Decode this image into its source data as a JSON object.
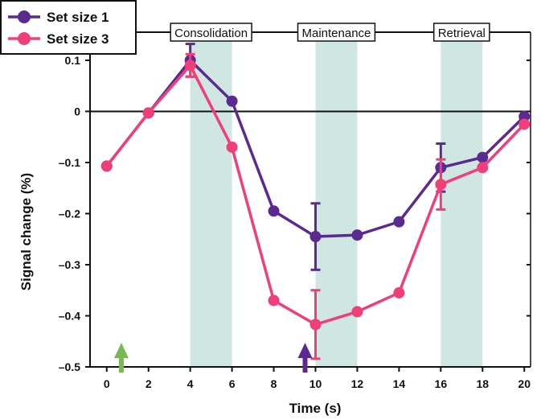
{
  "chart_data": {
    "type": "line",
    "title": "",
    "xlabel": "Time (s)",
    "ylabel": "Signal change (%)",
    "xlim": [
      -0.8,
      20.3
    ],
    "ylim": [
      -0.5,
      0.155
    ],
    "x_ticks": [
      0,
      2,
      4,
      6,
      8,
      10,
      12,
      14,
      16,
      18,
      20
    ],
    "y_ticks": [
      0.1,
      0,
      -0.1,
      -0.2,
      -0.3,
      -0.4,
      -0.5
    ],
    "y_tick_labels": [
      "0.1",
      "0",
      "–0.1",
      "–0.2",
      "–0.3",
      "–0.4",
      "–0.5"
    ],
    "grid": false,
    "legend": "top-left",
    "x": [
      0,
      2,
      4,
      6,
      8,
      10,
      12,
      14,
      16,
      18,
      20
    ],
    "series": [
      {
        "name": "Set size 1",
        "color": "#5b2a91",
        "values": [
          -0.107,
          -0.003,
          0.1,
          0.02,
          -0.195,
          -0.245,
          -0.242,
          -0.216,
          -0.11,
          -0.09,
          -0.01
        ],
        "error_bars": [
          {
            "x": 4,
            "high": 0.132,
            "low": 0.068
          },
          {
            "x": 10,
            "high": -0.18,
            "low": -0.31
          },
          {
            "x": 16,
            "high": -0.063,
            "low": -0.157
          }
        ]
      },
      {
        "name": "Set size 3",
        "color": "#f03e79",
        "values": [
          -0.107,
          -0.003,
          0.09,
          -0.07,
          -0.37,
          -0.417,
          -0.392,
          -0.355,
          -0.143,
          -0.11,
          -0.025
        ],
        "error_bars": [
          {
            "x": 4,
            "high": 0.112,
            "low": 0.068
          },
          {
            "x": 10,
            "high": -0.35,
            "low": -0.484
          },
          {
            "x": 16,
            "high": -0.094,
            "low": -0.192
          }
        ]
      }
    ],
    "phases": [
      {
        "label": "Consolidation",
        "start": 4,
        "end": 6
      },
      {
        "label": "Maintenance",
        "start": 10,
        "end": 12
      },
      {
        "label": "Retrieval",
        "start": 16,
        "end": 18
      }
    ],
    "phase_color": "#cfe6e3",
    "markers": [
      {
        "x": 0.7,
        "color": "#79b955"
      },
      {
        "x": 9.5,
        "color": "#5b2a91"
      }
    ]
  }
}
